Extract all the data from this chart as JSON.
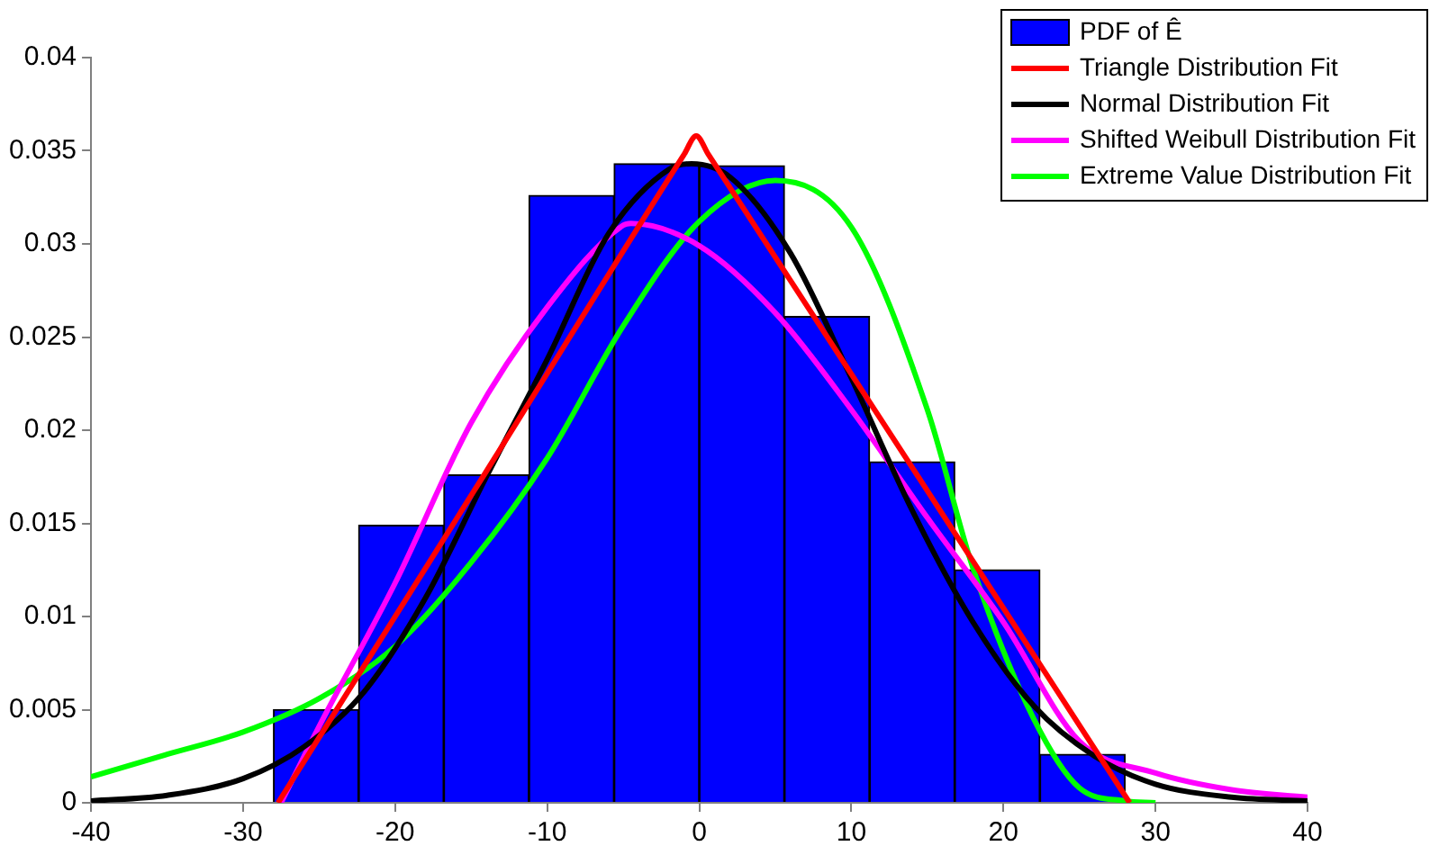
{
  "chart_data": {
    "type": "histogram",
    "bins": [
      -28,
      -22.4,
      -16.8,
      -11.2,
      -5.6,
      0,
      5.6,
      11.2,
      16.8,
      22.4,
      28
    ],
    "series": [
      {
        "name": "PDF of Ê",
        "color": "#0000ff",
        "values": [
          0.005,
          0.0149,
          0.0176,
          0.0326,
          0.0343,
          0.0342,
          0.0261,
          0.0183,
          0.0125,
          0.0026
        ]
      },
      {
        "name": "Triangle Distribution Fit",
        "type": "line",
        "color": "#ff0000",
        "x": [
          -27.7,
          -14,
          -1,
          -0.2,
          0.6,
          14,
          28.3
        ],
        "values": [
          0,
          0.0178,
          0.0348,
          0.0358,
          0.0348,
          0.018,
          0
        ]
      },
      {
        "name": "Normal Distribution Fit",
        "type": "line",
        "color": "#000000",
        "x": [
          -40,
          -35,
          -30,
          -26,
          -22,
          -18,
          -14,
          -10,
          -6,
          -2,
          -0.5,
          2,
          6,
          10,
          14,
          18,
          22,
          26,
          30,
          35,
          40
        ],
        "values": [
          0.0001,
          0.0004,
          0.0013,
          0.003,
          0.006,
          0.011,
          0.0175,
          0.0238,
          0.0305,
          0.034,
          0.0343,
          0.0336,
          0.0295,
          0.0228,
          0.0157,
          0.0097,
          0.0052,
          0.0025,
          0.001,
          0.0003,
          0.0001
        ]
      },
      {
        "name": "Shifted Weibull Distribution Fit",
        "type": "line",
        "color": "#ff00ff",
        "x": [
          -27.5,
          -25,
          -20,
          -15,
          -10,
          -5,
          -4.5,
          0,
          5,
          10,
          15,
          20,
          25,
          30,
          35,
          40
        ],
        "values": [
          0,
          0.0041,
          0.0118,
          0.0204,
          0.0266,
          0.031,
          0.0311,
          0.0299,
          0.0263,
          0.0211,
          0.0153,
          0.0097,
          0.0033,
          0.0016,
          0.0007,
          0.0003
        ]
      },
      {
        "name": "Extreme Value Distribution Fit",
        "type": "line",
        "color": "#00ff00",
        "x": [
          -40,
          -35,
          -30,
          -25,
          -20,
          -15,
          -10,
          -5,
          0,
          5,
          10,
          15,
          18,
          22,
          25,
          28,
          30
        ],
        "values": [
          0.0014,
          0.0026,
          0.0038,
          0.0056,
          0.0084,
          0.0129,
          0.0185,
          0.0256,
          0.0312,
          0.0334,
          0.0309,
          0.0211,
          0.0126,
          0.0045,
          0.0008,
          0.0001,
          0
        ]
      }
    ],
    "xlim": [
      -40,
      40
    ],
    "xticks": [
      -40,
      -30,
      -20,
      -10,
      0,
      10,
      20,
      30,
      40
    ],
    "ylim": [
      0,
      0.04
    ],
    "yticks": [
      0,
      0.005,
      0.01,
      0.015,
      0.02,
      0.025,
      0.03,
      0.035,
      0.04
    ],
    "grid": false,
    "legend": "top right"
  }
}
